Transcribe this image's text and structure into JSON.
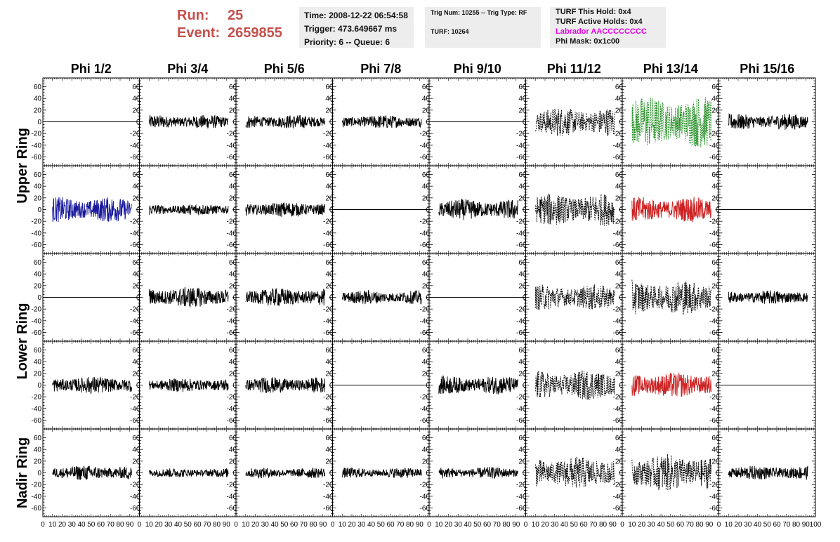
{
  "header": {
    "run_label": "Run:",
    "run_value": "25",
    "event_label": "Event:",
    "event_value": "2659855",
    "time": "Time: 2008-12-22 06:54:58",
    "trigger": "Trigger: 473.649667 ms",
    "priority": "Priority: 6 -- Queue: 6",
    "trig_num": "Trig Num: 10255 -- Trig Type: RF",
    "turf": "TURF: 10264",
    "turf_hold": "TURF This Hold: 0x4",
    "turf_active": "TURF Active Holds: 0x4",
    "labrador": "Labrador AACCCCCCCC",
    "phi_mask": "Phi Mask: 0x1c00"
  },
  "colors": {
    "run_text": "#c5504b",
    "labrador_text": "#e600e6",
    "trace_default": "#000000",
    "trace_blue": "#1a1a9e",
    "trace_green": "#1e8c1e",
    "trace_red": "#cc2222",
    "info_bg": "#ededed"
  },
  "chart_data": {
    "type": "line",
    "columns": [
      "Phi 1/2",
      "Phi 3/4",
      "Phi 5/6",
      "Phi 7/8",
      "Phi 9/10",
      "Phi 11/12",
      "Phi 13/14",
      "Phi 15/16"
    ],
    "rings": [
      "Upper Ring",
      "Lower Ring",
      "Nadir Ring"
    ],
    "xlim": [
      0,
      100
    ],
    "ylim": [
      -75,
      75
    ],
    "x_tick_labels": [
      "0",
      "10",
      "20",
      "30",
      "40",
      "50",
      "60",
      "70",
      "80",
      "90",
      "100"
    ],
    "y_tick_labels": [
      "60",
      "40",
      "20",
      "0",
      "-20",
      "-40",
      "-60"
    ],
    "panels": [
      [
        {
          "style": "flat",
          "color": "#000000",
          "amp": 0
        },
        {
          "style": "noise",
          "color": "#000000",
          "amp": 12
        },
        {
          "style": "noise",
          "color": "#000000",
          "amp": 12
        },
        {
          "style": "noise",
          "color": "#000000",
          "amp": 12
        },
        {
          "style": "flat",
          "color": "#000000",
          "amp": 0
        },
        {
          "style": "dashed",
          "color": "#000000",
          "amp": 25
        },
        {
          "style": "dashed",
          "color": "#1e8c1e",
          "amp": 45
        },
        {
          "style": "noise",
          "color": "#000000",
          "amp": 14
        }
      ],
      [
        {
          "style": "noise",
          "color": "#1a1a9e",
          "amp": 22
        },
        {
          "style": "noise",
          "color": "#000000",
          "amp": 10
        },
        {
          "style": "noise",
          "color": "#000000",
          "amp": 13
        },
        {
          "style": "flat",
          "color": "#000000",
          "amp": 0
        },
        {
          "style": "noise",
          "color": "#000000",
          "amp": 18
        },
        {
          "style": "dashed",
          "color": "#000000",
          "amp": 28
        },
        {
          "style": "noise",
          "color": "#cc2222",
          "amp": 22
        },
        {
          "style": "flat",
          "color": "#000000",
          "amp": 0
        }
      ],
      [
        {
          "style": "flat",
          "color": "#000000",
          "amp": 0
        },
        {
          "style": "noise",
          "color": "#000000",
          "amp": 18
        },
        {
          "style": "noise",
          "color": "#000000",
          "amp": 16
        },
        {
          "style": "noise",
          "color": "#000000",
          "amp": 12
        },
        {
          "style": "flat",
          "color": "#000000",
          "amp": 0
        },
        {
          "style": "dashed",
          "color": "#000000",
          "amp": 22
        },
        {
          "style": "dashed",
          "color": "#000000",
          "amp": 30
        },
        {
          "style": "noise",
          "color": "#000000",
          "amp": 12
        }
      ],
      [
        {
          "style": "noise",
          "color": "#000000",
          "amp": 15
        },
        {
          "style": "noise",
          "color": "#000000",
          "amp": 12
        },
        {
          "style": "noise",
          "color": "#000000",
          "amp": 14
        },
        {
          "style": "flat",
          "color": "#000000",
          "amp": 0
        },
        {
          "style": "noise",
          "color": "#000000",
          "amp": 16
        },
        {
          "style": "dashed",
          "color": "#000000",
          "amp": 26
        },
        {
          "style": "noise",
          "color": "#cc2222",
          "amp": 22
        },
        {
          "style": "flat",
          "color": "#000000",
          "amp": 0
        }
      ],
      [
        {
          "style": "noise",
          "color": "#000000",
          "amp": 13
        },
        {
          "style": "noise",
          "color": "#000000",
          "amp": 8
        },
        {
          "style": "noise",
          "color": "#000000",
          "amp": 9
        },
        {
          "style": "noise",
          "color": "#000000",
          "amp": 9
        },
        {
          "style": "noise",
          "color": "#000000",
          "amp": 10
        },
        {
          "style": "dashed",
          "color": "#000000",
          "amp": 28
        },
        {
          "style": "dashed",
          "color": "#000000",
          "amp": 32
        },
        {
          "style": "noise",
          "color": "#000000",
          "amp": 12
        }
      ]
    ]
  }
}
